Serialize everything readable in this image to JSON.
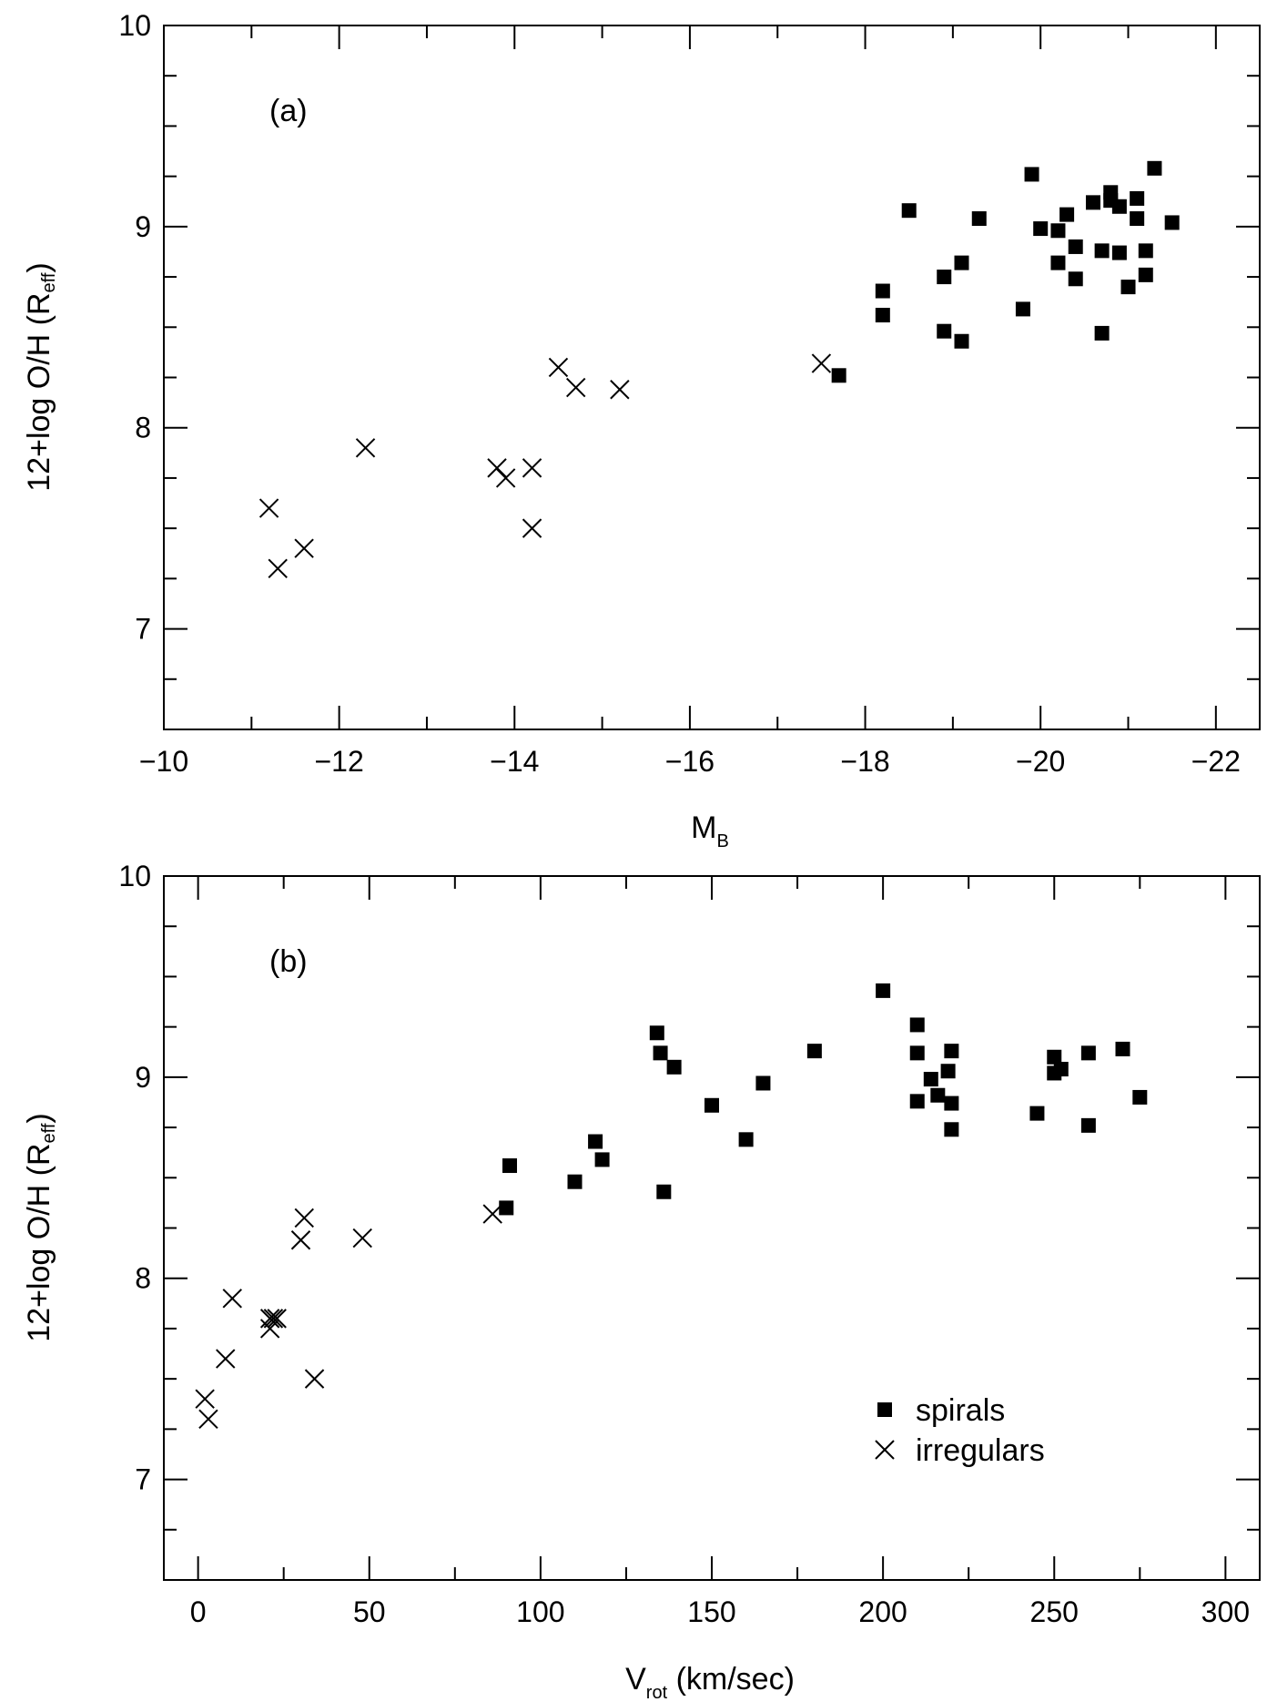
{
  "chart_data": [
    {
      "type": "scatter",
      "panel_label": "(a)",
      "xlabel": "M",
      "xlabel_sub": "B",
      "ylabel": "12+log O/H (R",
      "ylabel_sub": "eff",
      "ylabel_tail": ")",
      "xlim": [
        -10,
        -22.5
      ],
      "ylim": [
        6.5,
        10
      ],
      "xticks": [
        -10,
        -12,
        -14,
        -16,
        -18,
        -20,
        -22
      ],
      "xtick_labels": [
        "−10",
        "−12",
        "−14",
        "−16",
        "−18",
        "−20",
        "−22"
      ],
      "yticks": [
        7,
        8,
        9,
        10
      ],
      "ytick_labels": [
        "7",
        "8",
        "9",
        "10"
      ],
      "series": [
        {
          "name": "spirals",
          "marker": "square",
          "x": [
            -17.7,
            -18.2,
            -18.2,
            -18.5,
            -18.9,
            -18.9,
            -19.1,
            -19.1,
            -19.3,
            -19.8,
            -19.9,
            -20.0,
            -20.2,
            -20.2,
            -20.3,
            -20.4,
            -20.4,
            -20.6,
            -20.7,
            -20.7,
            -20.8,
            -20.8,
            -20.9,
            -20.9,
            -21.0,
            -21.1,
            -21.1,
            -21.2,
            -21.2,
            -21.3,
            -21.5
          ],
          "y": [
            8.26,
            8.68,
            8.56,
            9.08,
            8.75,
            8.48,
            8.82,
            8.43,
            9.04,
            8.59,
            9.26,
            8.99,
            8.98,
            8.82,
            9.06,
            8.9,
            8.74,
            9.12,
            8.88,
            8.47,
            9.17,
            9.13,
            8.87,
            9.1,
            8.7,
            9.14,
            9.04,
            8.88,
            8.76,
            9.29,
            9.02
          ]
        },
        {
          "name": "irregulars",
          "marker": "cross",
          "x": [
            -11.2,
            -11.3,
            -11.6,
            -12.3,
            -13.8,
            -13.9,
            -14.2,
            -14.2,
            -14.5,
            -14.7,
            -15.2,
            -17.5
          ],
          "y": [
            7.6,
            7.3,
            7.4,
            7.9,
            7.8,
            7.75,
            7.8,
            7.5,
            8.3,
            8.2,
            8.19,
            8.32
          ]
        }
      ]
    },
    {
      "type": "scatter",
      "panel_label": "(b)",
      "xlabel": "V",
      "xlabel_sub": "rot",
      "xlabel_tail": " (km/sec)",
      "ylabel": "12+log O/H (R",
      "ylabel_sub": "eff",
      "ylabel_tail": ")",
      "xlim": [
        -10,
        310
      ],
      "ylim": [
        6.5,
        10
      ],
      "xticks": [
        0,
        50,
        100,
        150,
        200,
        250,
        300
      ],
      "xtick_labels": [
        "0",
        "50",
        "100",
        "150",
        "200",
        "250",
        "300"
      ],
      "yticks": [
        7,
        8,
        9,
        10
      ],
      "ytick_labels": [
        "7",
        "8",
        "9",
        "10"
      ],
      "legend": {
        "position": "bottom-right",
        "entries": [
          "spirals",
          "irregulars"
        ]
      },
      "series": [
        {
          "name": "spirals",
          "marker": "square",
          "x": [
            90,
            91,
            110,
            116,
            118,
            134,
            135,
            136,
            139,
            150,
            160,
            165,
            180,
            200,
            210,
            210,
            210,
            214,
            216,
            219,
            220,
            220,
            220,
            245,
            250,
            250,
            252,
            260,
            260,
            270,
            275
          ],
          "y": [
            8.35,
            8.56,
            8.48,
            8.68,
            8.59,
            9.22,
            9.12,
            8.43,
            9.05,
            8.86,
            8.69,
            8.97,
            9.13,
            9.43,
            9.26,
            9.12,
            8.88,
            8.99,
            8.91,
            9.03,
            9.13,
            8.87,
            8.74,
            8.82,
            9.1,
            9.02,
            9.04,
            9.12,
            8.76,
            9.14,
            8.9
          ]
        },
        {
          "name": "irregulars",
          "marker": "cross",
          "x": [
            2,
            3,
            8,
            10,
            21,
            21,
            22,
            23,
            30,
            31,
            34,
            48,
            86
          ],
          "y": [
            7.4,
            7.3,
            7.6,
            7.9,
            7.8,
            7.75,
            7.8,
            7.8,
            8.19,
            8.3,
            7.5,
            8.2,
            8.32
          ]
        }
      ]
    }
  ]
}
